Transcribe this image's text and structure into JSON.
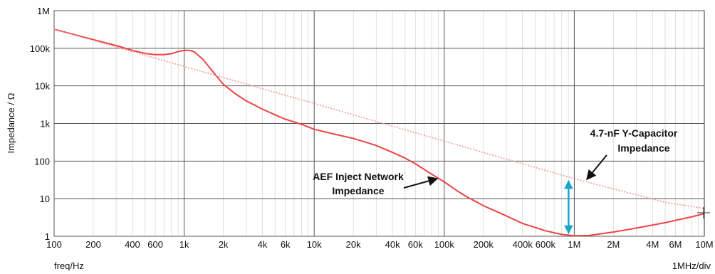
{
  "chart_data": {
    "type": "line",
    "title": "",
    "xlabel": "freq/Hz",
    "ylabel": "Impedance / Ω",
    "x_scale_label": "1MHz/div",
    "x_scale": "log",
    "y_scale": "log",
    "xlim": [
      100,
      10000000
    ],
    "ylim": [
      1,
      1000000
    ],
    "grid": true,
    "x_ticks": [
      {
        "v": 100,
        "label": "100"
      },
      {
        "v": 200,
        "label": "200"
      },
      {
        "v": 400,
        "label": "400"
      },
      {
        "v": 600,
        "label": "600"
      },
      {
        "v": 1000,
        "label": "1k"
      },
      {
        "v": 2000,
        "label": "2k"
      },
      {
        "v": 4000,
        "label": "4k"
      },
      {
        "v": 6000,
        "label": "6k"
      },
      {
        "v": 10000,
        "label": "10k"
      },
      {
        "v": 20000,
        "label": "20k"
      },
      {
        "v": 40000,
        "label": "40k"
      },
      {
        "v": 60000,
        "label": "60k"
      },
      {
        "v": 100000,
        "label": "100k"
      },
      {
        "v": 200000,
        "label": "200k"
      },
      {
        "v": 400000,
        "label": "400k"
      },
      {
        "v": 600000,
        "label": "600k"
      },
      {
        "v": 1000000,
        "label": "1M"
      },
      {
        "v": 2000000,
        "label": "2M"
      },
      {
        "v": 4000000,
        "label": "4M"
      },
      {
        "v": 6000000,
        "label": "6M"
      },
      {
        "v": 10000000,
        "label": "10M"
      }
    ],
    "y_ticks": [
      {
        "v": 1,
        "label": "1"
      },
      {
        "v": 10,
        "label": "10"
      },
      {
        "v": 100,
        "label": "100"
      },
      {
        "v": 1000,
        "label": "1k"
      },
      {
        "v": 10000,
        "label": "10k"
      },
      {
        "v": 100000,
        "label": "100k"
      },
      {
        "v": 1000000,
        "label": "1M"
      }
    ],
    "series": [
      {
        "name": "AEF Inject Network Impedance",
        "color": "#ee4444",
        "style": "solid",
        "points": [
          [
            100,
            320000
          ],
          [
            150,
            220000
          ],
          [
            200,
            170000
          ],
          [
            300,
            118000
          ],
          [
            400,
            88000
          ],
          [
            500,
            73000
          ],
          [
            600,
            68000
          ],
          [
            700,
            68000
          ],
          [
            800,
            72000
          ],
          [
            900,
            82000
          ],
          [
            1000,
            88000
          ],
          [
            1100,
            88000
          ],
          [
            1200,
            80000
          ],
          [
            1400,
            50000
          ],
          [
            1600,
            28000
          ],
          [
            2000,
            11000
          ],
          [
            2500,
            6000
          ],
          [
            3000,
            4000
          ],
          [
            4000,
            2400
          ],
          [
            5000,
            1700
          ],
          [
            6000,
            1300
          ],
          [
            8000,
            950
          ],
          [
            10000,
            700
          ],
          [
            15000,
            500
          ],
          [
            20000,
            400
          ],
          [
            30000,
            260
          ],
          [
            40000,
            170
          ],
          [
            50000,
            120
          ],
          [
            60000,
            85
          ],
          [
            80000,
            45
          ],
          [
            100000,
            28
          ],
          [
            120000,
            18
          ],
          [
            150000,
            11
          ],
          [
            180000,
            8
          ],
          [
            200000,
            6.5
          ],
          [
            300000,
            3.5
          ],
          [
            400000,
            2.2
          ],
          [
            600000,
            1.4
          ],
          [
            800000,
            1.12
          ],
          [
            1000000,
            1.03
          ],
          [
            1300000,
            1.05
          ],
          [
            2000000,
            1.3
          ],
          [
            3000000,
            1.65
          ],
          [
            5000000,
            2.3
          ],
          [
            8000000,
            3.3
          ],
          [
            10000000,
            4.0
          ]
        ]
      },
      {
        "name": "4.7-nF Y-Capacitor Impedance",
        "color": "#f09a9a",
        "style": "dotted",
        "points": [
          [
            100,
            320000
          ],
          [
            1000,
            33000
          ],
          [
            10000,
            3400
          ],
          [
            100000,
            340
          ],
          [
            1000000,
            34
          ],
          [
            5000000,
            8
          ],
          [
            10000000,
            5.5
          ]
        ]
      }
    ],
    "annotations": [
      {
        "text_lines": [
          "4.7-nF Y-Capacitor",
          "Impedance"
        ]
      },
      {
        "text_lines": [
          "AEF Inject Network",
          "Impedance"
        ]
      }
    ],
    "marker": {
      "x": 1000000,
      "y_from": 1.05,
      "y_to": 34,
      "color": "#1aa6c9"
    }
  }
}
